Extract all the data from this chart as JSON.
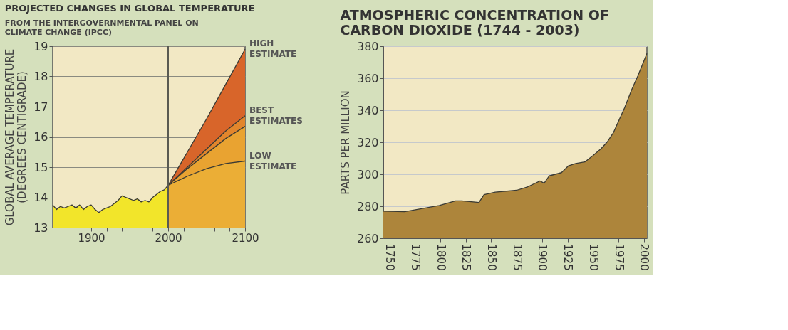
{
  "chart_data": [
    {
      "type": "area",
      "title": "PROJECTED CHANGES IN GLOBAL TEMPERATURE",
      "subtitle": "FROM THE INTERGOVERNMENTAL PANEL ON CLIMATE CHANGE (IPCC)",
      "ylabel": "GLOBAL AVERAGE TEMPERATURE (DEGREES CENTIGRADE)",
      "xlim": [
        1850,
        2100
      ],
      "xticks": [
        {
          "value": 1860,
          "label": null
        },
        {
          "value": 1880,
          "label": null
        },
        1900,
        {
          "value": 1920,
          "label": null
        },
        {
          "value": 1940,
          "label": null
        },
        {
          "value": 1960,
          "label": null
        },
        {
          "value": 1980,
          "label": null
        },
        2000,
        {
          "value": 2020,
          "label": null
        },
        {
          "value": 2040,
          "label": null
        },
        {
          "value": 2060,
          "label": null
        },
        {
          "value": 2080,
          "label": null
        },
        2100
      ],
      "ylim": [
        13,
        19
      ],
      "yticks": [
        13,
        14,
        15,
        16,
        17,
        18,
        19
      ],
      "grid": "y",
      "ref_lines": [
        {
          "axis": "x",
          "value": 2000,
          "label": null,
          "color": "#5a5a52"
        }
      ],
      "series": [
        {
          "color": "#f2e52a",
          "x": [
            1850,
            1855,
            1860,
            1865,
            1870,
            1875,
            1880,
            1885,
            1890,
            1895,
            1900,
            1905,
            1910,
            1915,
            1920,
            1925,
            1930,
            1935,
            1940,
            1945,
            1950,
            1955,
            1960,
            1965,
            1970,
            1975,
            1980,
            1985,
            1990,
            1995,
            2000
          ],
          "values": [
            13.75,
            13.6,
            13.7,
            13.65,
            13.7,
            13.75,
            13.65,
            13.75,
            13.6,
            13.7,
            13.75,
            13.6,
            13.5,
            13.6,
            13.65,
            13.7,
            13.8,
            13.9,
            14.05,
            14.0,
            13.95,
            13.9,
            13.95,
            13.85,
            13.9,
            13.85,
            14.0,
            14.1,
            14.2,
            14.25,
            14.4
          ]
        },
        {
          "name": "HIGH ESTIMATE",
          "color": "#d8652a",
          "x": [
            2000,
            2025,
            2050,
            2075,
            2100
          ],
          "values": [
            14.4,
            15.5,
            16.6,
            17.75,
            18.9
          ]
        },
        {
          "name": "BEST ESTIMATES",
          "color": "#e2862c",
          "x": [
            2000,
            2025,
            2050,
            2075,
            2100
          ],
          "values": [
            14.4,
            15.0,
            15.6,
            16.2,
            16.7
          ]
        },
        {
          "color": "#e9a331",
          "x": [
            2000,
            2025,
            2050,
            2075,
            2100
          ],
          "values": [
            14.4,
            14.95,
            15.45,
            15.95,
            16.35
          ]
        },
        {
          "name": "LOW ESTIMATE",
          "color": "#ebae36",
          "x": [
            2000,
            2025,
            2050,
            2075,
            2100
          ],
          "values": [
            14.4,
            14.7,
            14.95,
            15.12,
            15.2
          ]
        }
      ]
    },
    {
      "type": "area",
      "title": "ATMOSPHERIC CONCENTRATION OF CARBON DIOXIDE (1744 - 2003)",
      "ylabel": "PARTS PER MILLION",
      "xlim": [
        1744,
        2003
      ],
      "xticks": [
        1750,
        1775,
        1800,
        1825,
        1850,
        1875,
        1900,
        1925,
        1950,
        1975,
        2000
      ],
      "ylim": [
        260,
        380
      ],
      "yticks": [
        260,
        280,
        300,
        320,
        340,
        360,
        380
      ],
      "grid": "y",
      "series": [
        {
          "color": "#ad853b",
          "x": [
            1744,
            1765,
            1799,
            1815,
            1821,
            1838,
            1843,
            1854,
            1875,
            1885,
            1898,
            1902,
            1907,
            1919,
            1926,
            1933,
            1942,
            1950,
            1958,
            1964,
            1970,
            1975,
            1981,
            1988,
            1994,
            2003
          ],
          "values": [
            277,
            276.6,
            280.5,
            283.4,
            283.4,
            282.4,
            287.3,
            288.8,
            290,
            291.9,
            295.8,
            294.4,
            299,
            301,
            305.3,
            306.7,
            307.7,
            311.7,
            316,
            320.2,
            325.9,
            333,
            341.4,
            352.8,
            361.3,
            375.4
          ]
        }
      ]
    }
  ]
}
